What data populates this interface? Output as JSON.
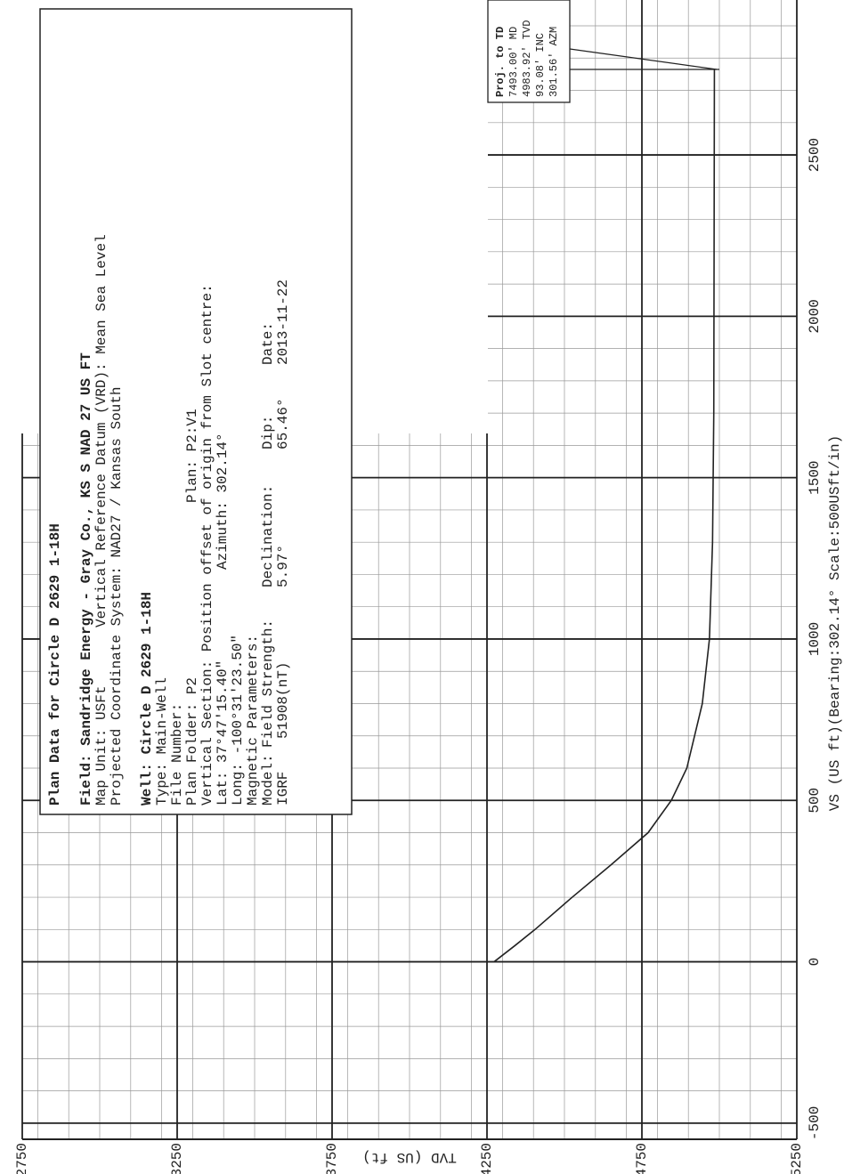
{
  "chart_data": {
    "type": "line",
    "x_label": "VS (US ft)(Bearing:302.14° Scale:500USft/in)",
    "y_label": "TVD (US ft)",
    "x": [
      0,
      50,
      100,
      200,
      300,
      400,
      500,
      600,
      800,
      1000,
      1300,
      1700,
      2200,
      2765
    ],
    "series": [
      {
        "name": "P2:V1",
        "color": "#222222",
        "values": [
          4273,
          4340,
          4405,
          4525,
          4650,
          4770,
          4845,
          4895,
          4945,
          4968,
          4978,
          4982,
          4983,
          4984
        ]
      }
    ],
    "xlim": [
      -550,
      2980
    ],
    "xticks": [
      -500,
      0,
      500,
      1000,
      1500,
      2000,
      2500
    ],
    "ylim": [
      2750,
      5250
    ],
    "yticks": [
      2750,
      3250,
      3750,
      4250,
      4750,
      5250
    ],
    "y_inverted": true,
    "grid": true,
    "minor_grid": {
      "x_step": 100,
      "y_step": 100
    }
  },
  "plan_data": {
    "title": "Plan Data for Circle D 2629 1-18H",
    "field": "Field: Sandridge Energy - Gray Co., KS S NAD 27 US FT",
    "map_unit": "Map Unit: USFt",
    "vrd": "Vertical Reference Datum (VRD): Mean Sea Level",
    "coord_system": "Projected Coordinate System: NAD27 / Kansas South",
    "well": "Well: Circle D 2629 1-18H",
    "type": "Type: Main-Well",
    "file_number": "File Number:",
    "plan_folder": "Plan Folder: P2",
    "plan": "Plan: P2:V1",
    "vertical_section": "Vertical Section: Position offset of origin from Slot centre:",
    "lat": "Lat: 37°47'15.40\"",
    "azimuth": "Azimuth: 302.14°",
    "long": "Long: -100°31'23.50\"",
    "magnetic": "Magnetic Parameters:",
    "headers": [
      "Model:",
      "Field Strength:",
      "Declination:",
      "Dip:",
      "Date:"
    ],
    "values": [
      "IGRF",
      "51908(nT)",
      "5.97°",
      "65.46°",
      "2013-11-22"
    ]
  },
  "projection": {
    "title": "Proj. to TD",
    "lines": [
      "7493.00' MD",
      "4983.92' TVD",
      "93.08' INC",
      "301.56' AZM"
    ]
  }
}
